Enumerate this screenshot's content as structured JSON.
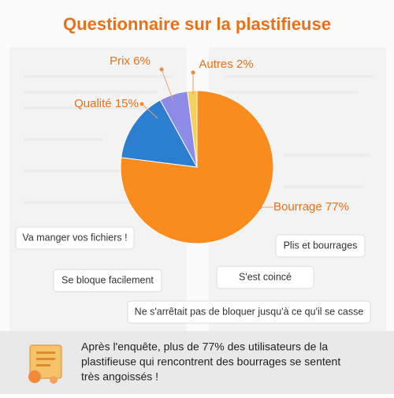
{
  "chart_data": {
    "type": "pie",
    "title": "Questionnaire sur la plastifieuse",
    "categories": [
      "Bourrage",
      "Qualité",
      "Prix",
      "Autres"
    ],
    "values": [
      77,
      15,
      6,
      2
    ],
    "value_labels": [
      "77%",
      "15%",
      "6%",
      "2%"
    ],
    "colors": [
      "#f98b1f",
      "#2c7ed0",
      "#8c8ce8",
      "#f6cf5c"
    ]
  },
  "comments": [
    "Va manger vos fichiers !",
    "Plis et bourrages",
    "Se bloque facilement",
    "S'est coincé",
    "Ne s'arrêtait pas de bloquer jusqu'à ce qu'il se casse"
  ],
  "footer": {
    "lines": [
      "Après l'enquête, plus de 77% des utilisateurs de la",
      "plastifieuse qui rencontrent des bourrages se sentent",
      "très angoissés !"
    ]
  }
}
